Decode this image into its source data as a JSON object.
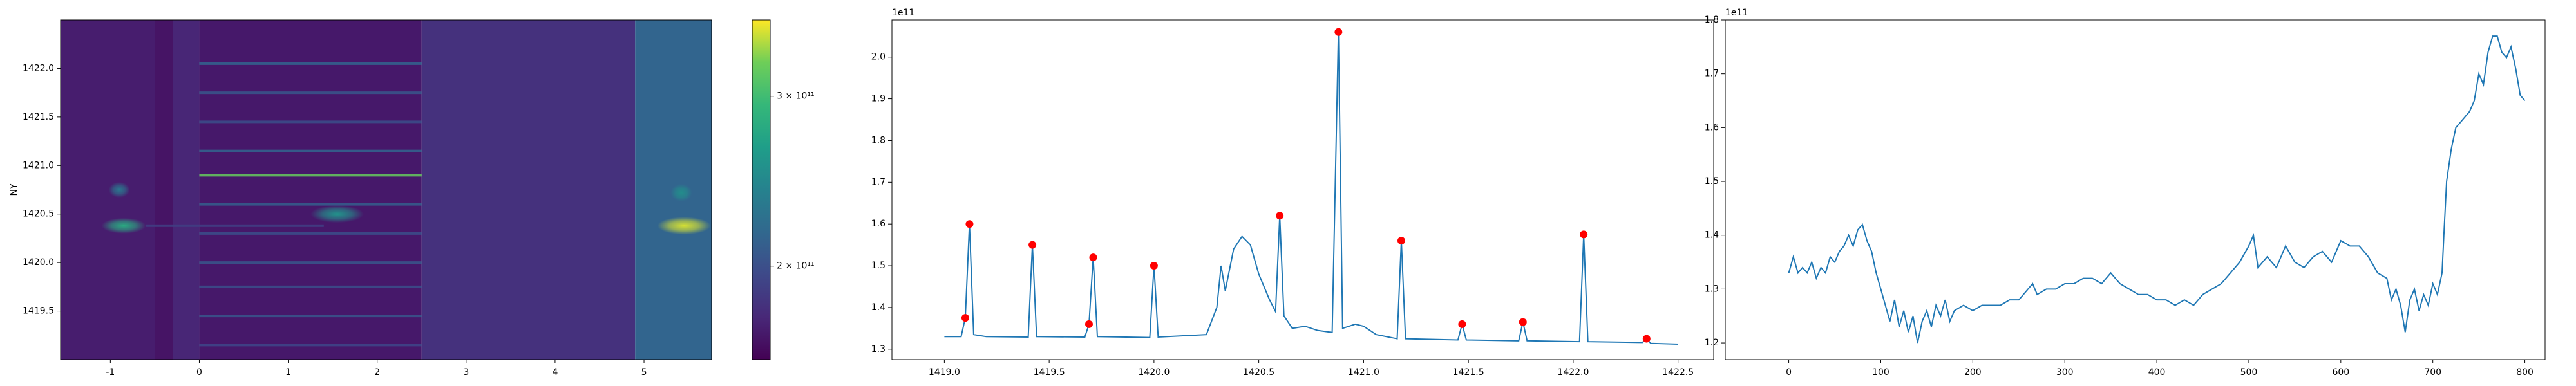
{
  "chart_data": [
    {
      "type": "heatmap",
      "ylabel": "NY",
      "xlim": [
        -1.56,
        5.76
      ],
      "ylim": [
        1419.0,
        1422.5
      ],
      "xticks": [
        -1,
        0,
        1,
        2,
        3,
        4,
        5
      ],
      "yticks": [
        1419.5,
        {
          "value": 1420,
          "label": "1420.0"
        },
        1420.5,
        {
          "value": 1421,
          "label": "1421.0"
        },
        1421.5,
        {
          "value": 1422,
          "label": "1422.0"
        }
      ],
      "colormap": "viridis",
      "log": true,
      "colorbar": {
        "lim": [
          160000000000,
          360000000000
        ],
        "ticks": [
          {
            "value": 200000000000,
            "label": "2 × 10¹¹"
          },
          {
            "value": 300000000000,
            "label": "3 × 10¹¹"
          }
        ]
      },
      "bands": [
        {
          "x0": -1.56,
          "x1": -0.5,
          "value": 172000000000
        },
        {
          "x0": -0.5,
          "x1": -0.3,
          "value": 168000000000
        },
        {
          "x0": -0.3,
          "x1": 0,
          "value": 176000000000
        },
        {
          "x0": 0,
          "x1": 2.5,
          "value": 170000000000
        },
        {
          "x0": 2.5,
          "x1": 4.9,
          "value": 182000000000
        },
        {
          "x0": 4.9,
          "x1": 5.76,
          "value": 215000000000
        }
      ],
      "stripes": [
        {
          "y": 1419.15,
          "x0": 0,
          "x1": 2.5,
          "value": 195000000000
        },
        {
          "y": 1419.45,
          "x0": 0,
          "x1": 2.5,
          "value": 205000000000
        },
        {
          "y": 1419.75,
          "x0": 0,
          "x1": 2.5,
          "value": 200000000000
        },
        {
          "y": 1420.0,
          "x0": 0,
          "x1": 2.5,
          "value": 205000000000
        },
        {
          "y": 1420.3,
          "x0": 0,
          "x1": 2.5,
          "value": 200000000000
        },
        {
          "y": 1420.6,
          "x0": 0,
          "x1": 2.5,
          "value": 210000000000
        },
        {
          "y": 1420.9,
          "x0": 0,
          "x1": 2.5,
          "value": 320000000000
        },
        {
          "y": 1421.15,
          "x0": 0,
          "x1": 2.5,
          "value": 215000000000
        },
        {
          "y": 1421.45,
          "x0": 0,
          "x1": 2.5,
          "value": 200000000000
        },
        {
          "y": 1421.75,
          "x0": 0,
          "x1": 2.5,
          "value": 205000000000
        },
        {
          "y": 1422.05,
          "x0": 0,
          "x1": 2.5,
          "value": 215000000000
        },
        {
          "y": 1420.38,
          "x0": -0.6,
          "x1": 1.4,
          "value": 190000000000
        }
      ],
      "blobs": [
        {
          "x": -0.85,
          "y": 1420.38,
          "sx": 0.25,
          "sy": 0.08,
          "value": 280000000000
        },
        {
          "x": -0.9,
          "y": 1420.75,
          "sx": 0.12,
          "sy": 0.08,
          "value": 230000000000
        },
        {
          "x": 1.55,
          "y": 1420.5,
          "sx": 0.3,
          "sy": 0.09,
          "value": 255000000000
        },
        {
          "x": 5.45,
          "y": 1420.38,
          "sx": 0.3,
          "sy": 0.09,
          "value": 350000000000
        },
        {
          "x": 5.42,
          "y": 1420.72,
          "sx": 0.12,
          "sy": 0.09,
          "value": 250000000000
        }
      ]
    },
    {
      "type": "line",
      "offset_text": "1e11",
      "color": "#1f77b4",
      "xlim": [
        1418.75,
        1422.67
      ],
      "ylim": [
        1.275,
        2.089
      ],
      "xticks": [
        {
          "value": 1419,
          "label": "1419.0"
        },
        1419.5,
        {
          "value": 1420,
          "label": "1420.0"
        },
        1420.5,
        {
          "value": 1421,
          "label": "1421.0"
        },
        1421.5,
        {
          "value": 1422,
          "label": "1422.0"
        },
        1422.5
      ],
      "yticks": [
        1.3,
        1.4,
        1.5,
        1.6,
        1.7,
        1.8,
        1.9,
        {
          "value": 2,
          "label": "2.0"
        }
      ],
      "x": [
        1419.0,
        1419.08,
        1419.1,
        1419.12,
        1419.14,
        1419.2,
        1419.4,
        1419.42,
        1419.44,
        1419.67,
        1419.69,
        1419.71,
        1419.73,
        1419.98,
        1420.0,
        1420.02,
        1420.25,
        1420.3,
        1420.32,
        1420.34,
        1420.38,
        1420.42,
        1420.46,
        1420.5,
        1420.55,
        1420.58,
        1420.6,
        1420.62,
        1420.66,
        1420.72,
        1420.78,
        1420.85,
        1420.88,
        1420.9,
        1420.96,
        1421.0,
        1421.06,
        1421.16,
        1421.18,
        1421.2,
        1421.45,
        1421.47,
        1421.49,
        1421.74,
        1421.76,
        1421.78,
        1422.03,
        1422.05,
        1422.07,
        1422.33,
        1422.35,
        1422.37,
        1422.5
      ],
      "values": [
        1.33,
        1.33,
        1.375,
        1.6,
        1.335,
        1.33,
        1.329,
        1.55,
        1.33,
        1.329,
        1.36,
        1.52,
        1.33,
        1.328,
        1.5,
        1.329,
        1.335,
        1.4,
        1.5,
        1.44,
        1.54,
        1.57,
        1.55,
        1.48,
        1.42,
        1.39,
        1.62,
        1.38,
        1.35,
        1.355,
        1.345,
        1.34,
        2.06,
        1.35,
        1.36,
        1.355,
        1.335,
        1.325,
        1.56,
        1.325,
        1.322,
        1.36,
        1.322,
        1.32,
        1.365,
        1.32,
        1.318,
        1.575,
        1.318,
        1.316,
        1.325,
        1.314,
        1.312
      ],
      "markers": {
        "color": "red",
        "x": [
          1419.1,
          1419.12,
          1419.42,
          1419.69,
          1419.71,
          1420.0,
          1420.6,
          1420.88,
          1421.18,
          1421.47,
          1421.76,
          1422.05,
          1422.35
        ],
        "values": [
          1.375,
          1.6,
          1.55,
          1.36,
          1.52,
          1.5,
          1.62,
          2.06,
          1.56,
          1.36,
          1.365,
          1.575,
          1.325
        ]
      }
    },
    {
      "type": "line",
      "offset_text": "1e11",
      "color": "#1f77b4",
      "xlim": [
        -69,
        822
      ],
      "ylim": [
        1.169,
        1.8
      ],
      "xticks": [
        0,
        100,
        200,
        300,
        400,
        500,
        600,
        700,
        800
      ],
      "yticks": [
        1.2,
        1.3,
        1.4,
        1.5,
        1.6,
        1.7,
        {
          "value": 1.8,
          "label": "1.8"
        }
      ],
      "x": [
        0,
        5,
        10,
        15,
        20,
        25,
        30,
        35,
        40,
        45,
        50,
        55,
        60,
        65,
        70,
        75,
        80,
        85,
        90,
        95,
        100,
        105,
        110,
        115,
        120,
        125,
        130,
        135,
        140,
        145,
        150,
        155,
        160,
        165,
        170,
        175,
        180,
        190,
        200,
        210,
        220,
        230,
        240,
        250,
        260,
        265,
        270,
        280,
        290,
        300,
        310,
        320,
        330,
        340,
        350,
        360,
        370,
        380,
        390,
        400,
        410,
        420,
        430,
        440,
        450,
        460,
        470,
        480,
        490,
        500,
        505,
        510,
        520,
        530,
        540,
        550,
        560,
        570,
        580,
        590,
        600,
        610,
        620,
        630,
        640,
        650,
        655,
        660,
        665,
        670,
        675,
        680,
        685,
        690,
        695,
        700,
        705,
        710,
        712,
        715,
        720,
        725,
        730,
        735,
        740,
        745,
        750,
        755,
        760,
        765,
        770,
        775,
        780,
        785,
        790,
        795,
        800
      ],
      "values": [
        1.33,
        1.36,
        1.33,
        1.34,
        1.33,
        1.35,
        1.32,
        1.34,
        1.33,
        1.36,
        1.35,
        1.37,
        1.38,
        1.4,
        1.38,
        1.41,
        1.42,
        1.39,
        1.37,
        1.33,
        1.3,
        1.27,
        1.24,
        1.28,
        1.23,
        1.26,
        1.22,
        1.25,
        1.2,
        1.24,
        1.26,
        1.23,
        1.27,
        1.25,
        1.28,
        1.24,
        1.26,
        1.27,
        1.26,
        1.27,
        1.27,
        1.27,
        1.28,
        1.28,
        1.3,
        1.31,
        1.29,
        1.3,
        1.3,
        1.31,
        1.31,
        1.32,
        1.32,
        1.31,
        1.33,
        1.31,
        1.3,
        1.29,
        1.29,
        1.28,
        1.28,
        1.27,
        1.28,
        1.27,
        1.29,
        1.3,
        1.31,
        1.33,
        1.35,
        1.38,
        1.4,
        1.34,
        1.36,
        1.34,
        1.38,
        1.35,
        1.34,
        1.36,
        1.37,
        1.35,
        1.39,
        1.38,
        1.38,
        1.36,
        1.33,
        1.32,
        1.28,
        1.3,
        1.27,
        1.22,
        1.28,
        1.3,
        1.26,
        1.29,
        1.27,
        1.31,
        1.29,
        1.33,
        1.4,
        1.5,
        1.56,
        1.6,
        1.61,
        1.62,
        1.63,
        1.65,
        1.7,
        1.68,
        1.74,
        1.77,
        1.77,
        1.74,
        1.73,
        1.75,
        1.71,
        1.66,
        1.65
      ]
    }
  ]
}
